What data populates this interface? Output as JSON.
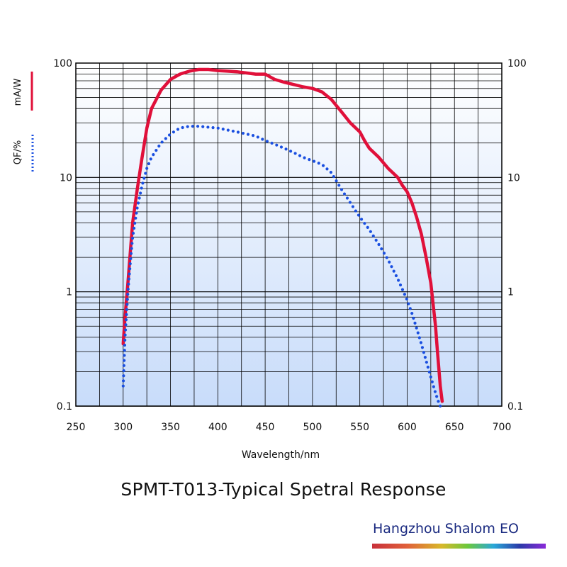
{
  "chart_data": {
    "type": "line",
    "title": "SPMT-T013-Typical Spetral Response",
    "xlabel": "Wavelength/nm",
    "ylabel_left_red": "mA/W",
    "ylabel_left_blue": "QF/%",
    "xlim": [
      250,
      700
    ],
    "ylim": [
      0.1,
      100
    ],
    "yscale": "log",
    "x_ticks": [
      "250",
      "300",
      "350",
      "400",
      "450",
      "500",
      "550",
      "600",
      "650",
      "700"
    ],
    "y_ticks": [
      "0.1",
      "1",
      "10",
      "100"
    ],
    "grid": true,
    "series": [
      {
        "name": "mA/W",
        "color": "#e0103a",
        "style": "solid",
        "x": [
          300,
          302,
          305,
          308,
          310,
          315,
          320,
          325,
          330,
          340,
          350,
          360,
          370,
          380,
          390,
          400,
          410,
          420,
          430,
          440,
          450,
          460,
          470,
          480,
          490,
          500,
          510,
          520,
          530,
          540,
          550,
          555,
          560,
          570,
          580,
          590,
          595,
          600,
          605,
          610,
          615,
          620,
          625,
          630,
          632,
          635,
          637
        ],
        "y": [
          0.35,
          0.6,
          1.2,
          2.5,
          4,
          8,
          15,
          27,
          40,
          58,
          72,
          80,
          85,
          88,
          88,
          86,
          85,
          84,
          82,
          80,
          80,
          72,
          68,
          65,
          62,
          60,
          56,
          48,
          38,
          30,
          25,
          21,
          18,
          15,
          12,
          10,
          8.5,
          7.5,
          6,
          4.5,
          3.2,
          2,
          1.2,
          0.5,
          0.3,
          0.15,
          0.11
        ]
      },
      {
        "name": "QF/%",
        "color": "#1a4fe0",
        "style": "dotted",
        "x": [
          300,
          302,
          305,
          308,
          310,
          315,
          320,
          325,
          330,
          340,
          350,
          360,
          370,
          380,
          390,
          400,
          410,
          420,
          430,
          440,
          450,
          460,
          470,
          480,
          490,
          500,
          510,
          520,
          530,
          540,
          550,
          560,
          570,
          580,
          590,
          600,
          605,
          610,
          615,
          620,
          625,
          630,
          633,
          635
        ],
        "y": [
          0.15,
          0.4,
          1,
          2,
          3,
          5.5,
          8.5,
          12,
          15,
          20,
          24,
          27,
          28,
          28,
          27.5,
          27,
          26,
          25,
          24,
          23,
          21,
          19.5,
          18,
          16.5,
          15,
          14,
          13,
          11,
          8,
          6,
          4.5,
          3.5,
          2.6,
          1.9,
          1.3,
          0.85,
          0.65,
          0.48,
          0.35,
          0.25,
          0.18,
          0.13,
          0.11,
          0.1
        ]
      }
    ]
  },
  "brand": {
    "name": "Hangzhou Shalom EO"
  }
}
